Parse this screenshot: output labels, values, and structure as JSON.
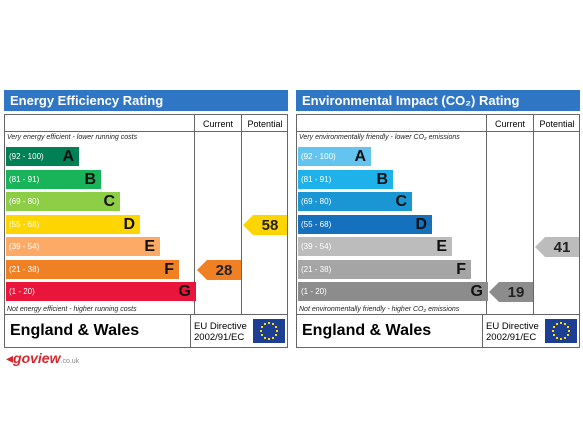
{
  "panels": [
    {
      "title": "Energy Efficiency Rating",
      "columns": [
        "Current",
        "Potential"
      ],
      "top_note": "Very energy efficient - lower running costs",
      "bottom_note": "Not energy efficient - higher running costs",
      "bands": [
        {
          "range": "(92 - 100)",
          "letter": "A",
          "color": "#008054"
        },
        {
          "range": "(81 - 91)",
          "letter": "B",
          "color": "#19b459"
        },
        {
          "range": "(69 - 80)",
          "letter": "C",
          "color": "#8dce46"
        },
        {
          "range": "(55 - 68)",
          "letter": "D",
          "color": "#ffd500"
        },
        {
          "range": "(39 - 54)",
          "letter": "E",
          "color": "#fcaa65"
        },
        {
          "range": "(21 - 38)",
          "letter": "F",
          "color": "#ef8023"
        },
        {
          "range": "(1 - 20)",
          "letter": "G",
          "color": "#e9153b"
        }
      ],
      "current": 28,
      "potential": 58,
      "region": "England & Wales",
      "directive": [
        "EU Directive",
        "2002/91/EC"
      ]
    },
    {
      "title": "Environmental Impact (CO₂) Rating",
      "columns": [
        "Current",
        "Potential"
      ],
      "top_note": "Very environmentally friendly - lower CO₂ emissions",
      "bottom_note": "Not environmentally friendly - higher CO₂ emissions",
      "bands": [
        {
          "range": "(92 - 100)",
          "letter": "A",
          "color": "#63c5ef"
        },
        {
          "range": "(81 - 91)",
          "letter": "B",
          "color": "#1fb1ea"
        },
        {
          "range": "(69 - 80)",
          "letter": "C",
          "color": "#1a96d4"
        },
        {
          "range": "(55 - 68)",
          "letter": "D",
          "color": "#1570bd"
        },
        {
          "range": "(39 - 54)",
          "letter": "E",
          "color": "#bcbcbc"
        },
        {
          "range": "(21 - 38)",
          "letter": "F",
          "color": "#a5a5a5"
        },
        {
          "range": "(1 - 20)",
          "letter": "G",
          "color": "#8c8c8c"
        }
      ],
      "current": 19,
      "potential": 41,
      "region": "England & Wales",
      "directive": [
        "EU Directive",
        "2002/91/EC"
      ]
    }
  ],
  "logo": {
    "name": "goview",
    "suffix": ".co.uk"
  }
}
